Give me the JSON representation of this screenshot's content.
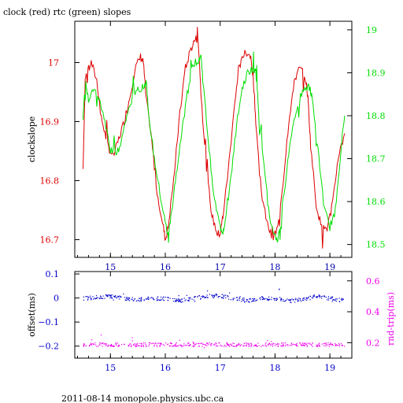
{
  "title": "clock (red) rtc (green) slopes",
  "footer": "2011-08-14  monopole.physics.ubc.ca",
  "colors": {
    "clock": "#dd0000",
    "rtc": "#00dd00",
    "offset": "#0000cc",
    "rndtrip": "#ee00ee",
    "frame": "#000000",
    "xtick_top": "#0000aa"
  },
  "chart_data": [
    {
      "type": "line",
      "title": "clock (red) rtc (green) slopes",
      "xlabel": "",
      "ylabel": "clockslope",
      "y2label": "",
      "xlim": [
        14.35,
        19.4
      ],
      "ylim": [
        16.67,
        17.07
      ],
      "y2lim": [
        18.47,
        19.02
      ],
      "xticks": [
        15,
        16,
        17,
        18,
        19
      ],
      "yticks": [
        16.7,
        16.8,
        16.9,
        17
      ],
      "y2ticks": [
        18.5,
        18.6,
        18.7,
        18.8,
        18.9,
        19
      ],
      "series": [
        {
          "name": "clock",
          "axis": "left",
          "x": [
            14.5,
            14.54,
            14.58,
            14.65,
            14.75,
            14.85,
            14.95,
            15.05,
            15.15,
            15.25,
            15.35,
            15.45,
            15.55,
            15.6,
            15.65,
            15.75,
            15.85,
            15.95,
            16.0,
            16.05,
            16.15,
            16.25,
            16.35,
            16.45,
            16.55,
            16.6,
            16.65,
            16.75,
            16.85,
            16.95,
            17.0,
            17.05,
            17.15,
            17.25,
            17.35,
            17.45,
            17.55,
            17.6,
            17.65,
            17.75,
            17.85,
            17.95,
            18.05,
            18.15,
            18.25,
            18.35,
            18.45,
            18.55,
            18.6,
            18.65,
            18.75,
            18.85,
            18.95,
            19.05,
            19.15,
            19.27
          ],
          "y": [
            16.82,
            16.97,
            16.99,
            17.0,
            16.97,
            16.9,
            16.86,
            16.84,
            16.87,
            16.9,
            16.94,
            16.99,
            17.01,
            17.0,
            16.94,
            16.87,
            16.78,
            16.73,
            16.7,
            16.72,
            16.8,
            16.9,
            16.98,
            17.02,
            17.04,
            17.04,
            16.95,
            16.82,
            16.74,
            16.71,
            16.71,
            16.74,
            16.82,
            16.92,
            16.99,
            17.02,
            17.01,
            16.98,
            16.9,
            16.78,
            16.73,
            16.7,
            16.72,
            16.8,
            16.9,
            16.97,
            16.99,
            16.98,
            16.94,
            16.86,
            16.76,
            16.72,
            16.72,
            16.76,
            16.84,
            16.88
          ]
        },
        {
          "name": "rtc",
          "axis": "right",
          "x": [
            14.5,
            14.55,
            14.6,
            14.7,
            14.8,
            14.9,
            15.0,
            15.1,
            15.2,
            15.3,
            15.4,
            15.5,
            15.6,
            15.65,
            15.7,
            15.8,
            15.9,
            16.0,
            16.05,
            16.1,
            16.2,
            16.3,
            16.4,
            16.5,
            16.6,
            16.65,
            16.7,
            16.8,
            16.9,
            17.0,
            17.05,
            17.1,
            17.2,
            17.3,
            17.4,
            17.5,
            17.6,
            17.65,
            17.7,
            17.8,
            17.9,
            18.0,
            18.05,
            18.1,
            18.2,
            18.3,
            18.4,
            18.5,
            18.6,
            18.65,
            18.7,
            18.8,
            18.9,
            19.0,
            19.1,
            19.2,
            19.27
          ],
          "y": [
            18.8,
            18.88,
            18.84,
            18.86,
            18.84,
            18.78,
            18.72,
            18.71,
            18.74,
            18.8,
            18.84,
            18.86,
            18.87,
            18.88,
            18.8,
            18.7,
            18.62,
            18.55,
            18.52,
            18.56,
            18.66,
            18.76,
            18.85,
            18.92,
            18.93,
            18.94,
            18.86,
            18.72,
            18.6,
            18.54,
            18.53,
            18.56,
            18.66,
            18.78,
            18.86,
            18.9,
            18.91,
            18.9,
            18.82,
            18.68,
            18.56,
            18.52,
            18.51,
            18.55,
            18.66,
            18.76,
            18.82,
            18.86,
            18.87,
            18.86,
            18.82,
            18.7,
            18.58,
            18.54,
            18.58,
            18.72,
            18.8
          ]
        }
      ]
    },
    {
      "type": "scatter",
      "title": "",
      "xlabel": "",
      "ylabel": "offset(ms)",
      "y2label": "rnd-trip(ms)",
      "xlim": [
        14.35,
        19.4
      ],
      "ylim": [
        -0.25,
        0.11
      ],
      "y2lim": [
        0.1,
        0.66
      ],
      "xticks": [
        15,
        16,
        17,
        18,
        19
      ],
      "yticks": [
        -0.2,
        -0.1,
        0,
        0.1
      ],
      "y2ticks": [
        0.2,
        0.4,
        0.6
      ],
      "ytick_labels": [
        "−0.2",
        "−0.1",
        "0",
        "0.1"
      ],
      "series": [
        {
          "name": "offset",
          "axis": "left",
          "x": [
            14.5,
            14.75,
            15.0,
            15.25,
            15.5,
            15.75,
            16.0,
            16.25,
            16.5,
            16.75,
            17.0,
            17.25,
            17.5,
            17.75,
            18.0,
            18.25,
            18.5,
            18.75,
            19.0,
            19.27
          ],
          "y": [
            0.0,
            0.005,
            0.01,
            0.0,
            -0.005,
            0.0,
            0.0,
            -0.01,
            0.0,
            0.01,
            0.01,
            0.0,
            -0.01,
            0.0,
            0.0,
            -0.01,
            -0.005,
            0.01,
            0.0,
            -0.01
          ]
        },
        {
          "name": "rnd-trip",
          "axis": "right",
          "x": [
            14.5,
            14.75,
            15.0,
            15.25,
            15.5,
            15.75,
            16.0,
            16.25,
            16.5,
            16.75,
            17.0,
            17.25,
            17.5,
            17.75,
            18.0,
            18.25,
            18.5,
            18.75,
            19.0,
            19.27
          ],
          "y": [
            0.19,
            0.19,
            0.19,
            0.19,
            0.19,
            0.19,
            0.19,
            0.19,
            0.19,
            0.19,
            0.19,
            0.19,
            0.19,
            0.19,
            0.19,
            0.19,
            0.19,
            0.19,
            0.19,
            0.19
          ]
        }
      ]
    }
  ]
}
